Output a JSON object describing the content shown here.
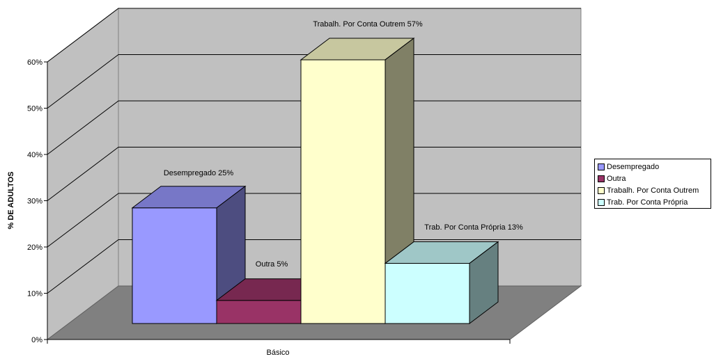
{
  "chart_data": {
    "type": "bar",
    "categories": [
      "Básico"
    ],
    "series": [
      {
        "name": "Desempregado",
        "values": [
          25
        ],
        "label": "Desempregado 25%",
        "color": "#9999ff"
      },
      {
        "name": "Outra",
        "values": [
          5
        ],
        "label": "Outra 5%",
        "color": "#993366"
      },
      {
        "name": "Trabalh. Por Conta Outrem",
        "values": [
          57
        ],
        "label": "Trabalh. Por Conta Outrem 57%",
        "color": "#ffffcc"
      },
      {
        "name": "Trab. Por Conta Própria",
        "values": [
          13
        ],
        "label": "Trab. Por Conta Própria 13%",
        "color": "#ccffff"
      }
    ],
    "ylabel": "% DE ADULTOS",
    "xlabel": "",
    "ylim": [
      0,
      60
    ],
    "yticks": [
      "0%",
      "10%",
      "20%",
      "30%",
      "40%",
      "50%",
      "60%"
    ],
    "style": "3d",
    "grid": true,
    "legend_position": "right"
  }
}
